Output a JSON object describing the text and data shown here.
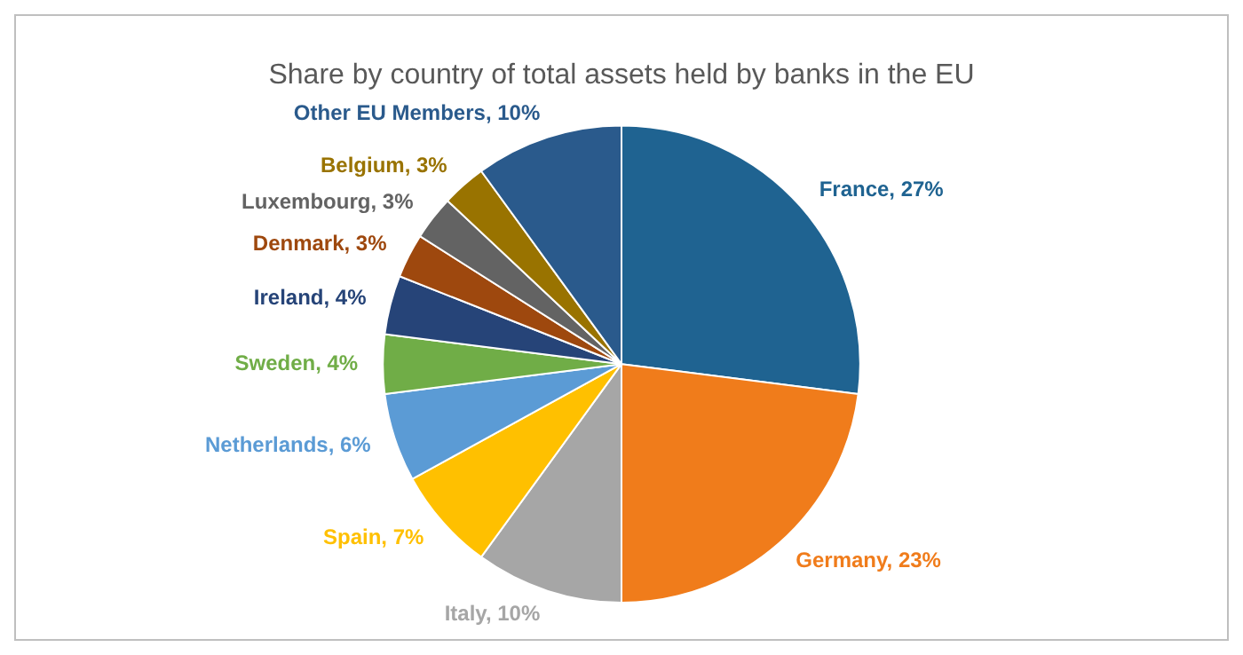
{
  "chart_data": {
    "type": "pie",
    "title": "Share by country of total assets held by banks in the EU",
    "categories": [
      "France",
      "Germany",
      "Italy",
      "Spain",
      "Netherlands",
      "Sweden",
      "Ireland",
      "Denmark",
      "Luxembourg",
      "Belgium",
      "Other EU Members"
    ],
    "values": [
      27,
      23,
      10,
      7,
      6,
      4,
      4,
      3,
      3,
      3,
      10
    ],
    "value_labels": [
      "27%",
      "23%",
      "10%",
      "7%",
      "6%",
      "4%",
      "4%",
      "3%",
      "3%",
      "3%",
      "10%"
    ],
    "colors": [
      "#1f6391",
      "#f07c1b",
      "#a6a6a6",
      "#ffc000",
      "#5b9bd5",
      "#70ad47",
      "#264478",
      "#9e480e",
      "#636363",
      "#997300",
      "#2a5a8c"
    ],
    "legend": false
  }
}
